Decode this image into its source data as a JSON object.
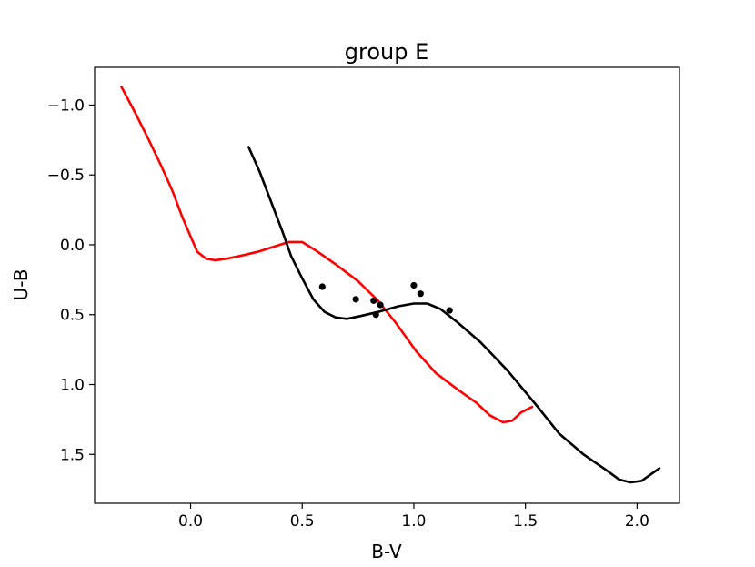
{
  "chart_data": {
    "type": "line",
    "title": "group E",
    "xlabel": "B-V",
    "ylabel": "U-B",
    "xlim": [
      -0.43,
      2.19
    ],
    "ylim": [
      1.85,
      -1.27
    ],
    "y_inverted": true,
    "grid": false,
    "x_ticks": [
      {
        "value": 0.0,
        "label": "0.0"
      },
      {
        "value": 0.5,
        "label": "0.5"
      },
      {
        "value": 1.0,
        "label": "1.0"
      },
      {
        "value": 1.5,
        "label": "1.5"
      },
      {
        "value": 2.0,
        "label": "2.0"
      }
    ],
    "y_ticks": [
      {
        "value": -1.0,
        "label": "−1.0"
      },
      {
        "value": -0.5,
        "label": "−0.5"
      },
      {
        "value": 0.0,
        "label": "0.0"
      },
      {
        "value": 0.5,
        "label": "0.5"
      },
      {
        "value": 1.0,
        "label": "1.0"
      },
      {
        "value": 1.5,
        "label": "1.5"
      }
    ],
    "series": [
      {
        "kind": "line",
        "color": "#ff0000",
        "points": [
          [
            -0.31,
            -1.13
          ],
          [
            -0.25,
            -0.95
          ],
          [
            -0.19,
            -0.76
          ],
          [
            -0.13,
            -0.56
          ],
          [
            -0.08,
            -0.38
          ],
          [
            -0.04,
            -0.21
          ],
          [
            0.0,
            -0.06
          ],
          [
            0.03,
            0.05
          ],
          [
            0.07,
            0.1
          ],
          [
            0.11,
            0.11
          ],
          [
            0.16,
            0.1
          ],
          [
            0.22,
            0.08
          ],
          [
            0.3,
            0.05
          ],
          [
            0.38,
            0.01
          ],
          [
            0.44,
            -0.02
          ],
          [
            0.5,
            -0.02
          ],
          [
            0.56,
            0.04
          ],
          [
            0.65,
            0.14
          ],
          [
            0.75,
            0.26
          ],
          [
            0.84,
            0.4
          ],
          [
            0.92,
            0.56
          ],
          [
            1.01,
            0.76
          ],
          [
            1.1,
            0.92
          ],
          [
            1.2,
            1.04
          ],
          [
            1.28,
            1.13
          ],
          [
            1.34,
            1.22
          ],
          [
            1.4,
            1.27
          ],
          [
            1.44,
            1.26
          ],
          [
            1.48,
            1.2
          ],
          [
            1.53,
            1.16
          ]
        ]
      },
      {
        "kind": "line",
        "color": "#000000",
        "points": [
          [
            0.26,
            -0.7
          ],
          [
            0.31,
            -0.52
          ],
          [
            0.36,
            -0.31
          ],
          [
            0.41,
            -0.1
          ],
          [
            0.45,
            0.08
          ],
          [
            0.5,
            0.24
          ],
          [
            0.55,
            0.39
          ],
          [
            0.6,
            0.48
          ],
          [
            0.65,
            0.52
          ],
          [
            0.7,
            0.53
          ],
          [
            0.76,
            0.51
          ],
          [
            0.84,
            0.48
          ],
          [
            0.93,
            0.44
          ],
          [
            1.0,
            0.42
          ],
          [
            1.06,
            0.42
          ],
          [
            1.12,
            0.46
          ],
          [
            1.2,
            0.56
          ],
          [
            1.3,
            0.7
          ],
          [
            1.42,
            0.9
          ],
          [
            1.55,
            1.15
          ],
          [
            1.65,
            1.35
          ],
          [
            1.76,
            1.5
          ],
          [
            1.86,
            1.61
          ],
          [
            1.92,
            1.68
          ],
          [
            1.97,
            1.7
          ],
          [
            2.02,
            1.69
          ],
          [
            2.1,
            1.6
          ]
        ]
      },
      {
        "kind": "scatter",
        "color": "#000000",
        "points": [
          [
            0.59,
            0.3
          ],
          [
            0.74,
            0.39
          ],
          [
            0.82,
            0.4
          ],
          [
            0.85,
            0.43
          ],
          [
            0.83,
            0.5
          ],
          [
            1.0,
            0.29
          ],
          [
            1.03,
            0.35
          ],
          [
            1.16,
            0.47
          ]
        ]
      }
    ]
  }
}
